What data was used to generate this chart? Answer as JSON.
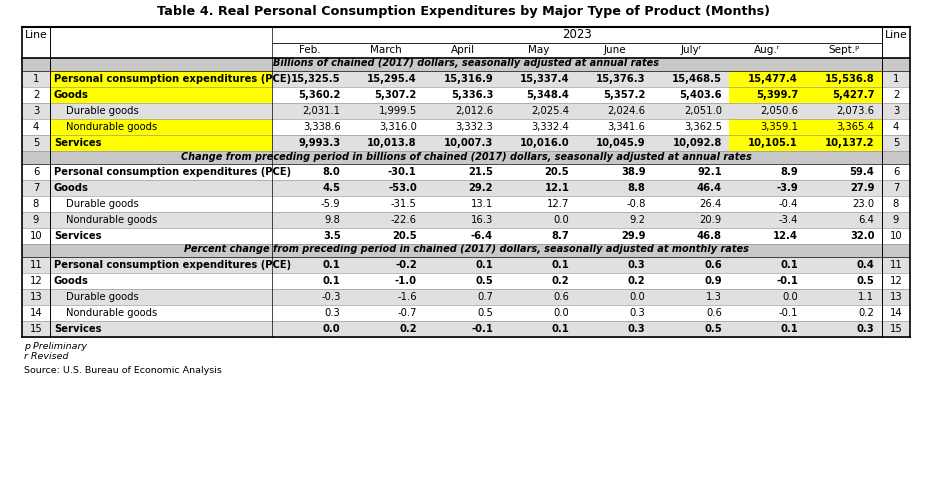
{
  "title": "Table 4. Real Personal Consumption Expenditures by Major Type of Product (Months)",
  "year_label": "2023",
  "col_headers": [
    "Feb.",
    "March",
    "April",
    "May",
    "June",
    "Julyʳ",
    "Aug.ʳ",
    "Sept.ᵖ"
  ],
  "section1_header": "Billions of chained (2017) dollars, seasonally adjusted at annual rates",
  "section2_header": "Change from preceding period in billions of chained (2017) dollars, seasonally adjusted at annual rates",
  "section3_header": "Percent change from preceding period in chained (2017) dollars, seasonally adjusted at monthly rates",
  "rows": [
    {
      "line": "1",
      "label": "Personal consumption expenditures (PCE)",
      "bold": true,
      "yellow_label": true,
      "yellow_cols": [
        6,
        7
      ],
      "indent": 0,
      "values": [
        "15,325.5",
        "15,295.4",
        "15,316.9",
        "15,337.4",
        "15,376.3",
        "15,468.5",
        "15,477.4",
        "15,536.8"
      ]
    },
    {
      "line": "2",
      "label": "Goods",
      "bold": true,
      "yellow_label": true,
      "yellow_cols": [
        6,
        7
      ],
      "indent": 0,
      "values": [
        "5,360.2",
        "5,307.2",
        "5,336.3",
        "5,348.4",
        "5,357.2",
        "5,403.6",
        "5,399.7",
        "5,427.7"
      ]
    },
    {
      "line": "3",
      "label": "Durable goods",
      "bold": false,
      "yellow_label": false,
      "yellow_cols": [],
      "indent": 1,
      "values": [
        "2,031.1",
        "1,999.5",
        "2,012.6",
        "2,025.4",
        "2,024.6",
        "2,051.0",
        "2,050.6",
        "2,073.6"
      ]
    },
    {
      "line": "4",
      "label": "Nondurable goods",
      "bold": false,
      "yellow_label": true,
      "yellow_cols": [
        6,
        7
      ],
      "indent": 1,
      "values": [
        "3,338.6",
        "3,316.0",
        "3,332.3",
        "3,332.4",
        "3,341.6",
        "3,362.5",
        "3,359.1",
        "3,365.4"
      ]
    },
    {
      "line": "5",
      "label": "Services",
      "bold": true,
      "yellow_label": true,
      "yellow_cols": [
        6,
        7
      ],
      "indent": 0,
      "values": [
        "9,993.3",
        "10,013.8",
        "10,007.3",
        "10,016.0",
        "10,045.9",
        "10,092.8",
        "10,105.1",
        "10,137.2"
      ]
    },
    {
      "line": "6",
      "label": "Personal consumption expenditures (PCE)",
      "bold": true,
      "yellow_label": false,
      "yellow_cols": [],
      "indent": 0,
      "values": [
        "8.0",
        "-30.1",
        "21.5",
        "20.5",
        "38.9",
        "92.1",
        "8.9",
        "59.4"
      ]
    },
    {
      "line": "7",
      "label": "Goods",
      "bold": true,
      "yellow_label": false,
      "yellow_cols": [],
      "indent": 0,
      "values": [
        "4.5",
        "-53.0",
        "29.2",
        "12.1",
        "8.8",
        "46.4",
        "-3.9",
        "27.9"
      ]
    },
    {
      "line": "8",
      "label": "Durable goods",
      "bold": false,
      "yellow_label": false,
      "yellow_cols": [],
      "indent": 1,
      "values": [
        "-5.9",
        "-31.5",
        "13.1",
        "12.7",
        "-0.8",
        "26.4",
        "-0.4",
        "23.0"
      ]
    },
    {
      "line": "9",
      "label": "Nondurable goods",
      "bold": false,
      "yellow_label": false,
      "yellow_cols": [],
      "indent": 1,
      "values": [
        "9.8",
        "-22.6",
        "16.3",
        "0.0",
        "9.2",
        "20.9",
        "-3.4",
        "6.4"
      ]
    },
    {
      "line": "10",
      "label": "Services",
      "bold": true,
      "yellow_label": false,
      "yellow_cols": [],
      "indent": 0,
      "values": [
        "3.5",
        "20.5",
        "-6.4",
        "8.7",
        "29.9",
        "46.8",
        "12.4",
        "32.0"
      ]
    },
    {
      "line": "11",
      "label": "Personal consumption expenditures (PCE)",
      "bold": true,
      "yellow_label": false,
      "yellow_cols": [],
      "indent": 0,
      "values": [
        "0.1",
        "-0.2",
        "0.1",
        "0.1",
        "0.3",
        "0.6",
        "0.1",
        "0.4"
      ]
    },
    {
      "line": "12",
      "label": "Goods",
      "bold": true,
      "yellow_label": false,
      "yellow_cols": [],
      "indent": 0,
      "values": [
        "0.1",
        "-1.0",
        "0.5",
        "0.2",
        "0.2",
        "0.9",
        "-0.1",
        "0.5"
      ]
    },
    {
      "line": "13",
      "label": "Durable goods",
      "bold": false,
      "yellow_label": false,
      "yellow_cols": [],
      "indent": 1,
      "values": [
        "-0.3",
        "-1.6",
        "0.7",
        "0.6",
        "0.0",
        "1.3",
        "0.0",
        "1.1"
      ]
    },
    {
      "line": "14",
      "label": "Nondurable goods",
      "bold": false,
      "yellow_label": false,
      "yellow_cols": [],
      "indent": 1,
      "values": [
        "0.3",
        "-0.7",
        "0.5",
        "0.0",
        "0.3",
        "0.6",
        "-0.1",
        "0.2"
      ]
    },
    {
      "line": "15",
      "label": "Services",
      "bold": true,
      "yellow_label": false,
      "yellow_cols": [],
      "indent": 0,
      "values": [
        "0.0",
        "0.2",
        "-0.1",
        "0.1",
        "0.3",
        "0.5",
        "0.1",
        "0.3"
      ]
    }
  ],
  "footer_lines": [
    "p Preliminary",
    "r Revised",
    "Source: U.S. Bureau of Economic Analysis"
  ],
  "yellow": "#FFFF00",
  "gray_odd": "#E0E0E0",
  "gray_section": "#C8C8C8",
  "white": "#FFFFFF"
}
